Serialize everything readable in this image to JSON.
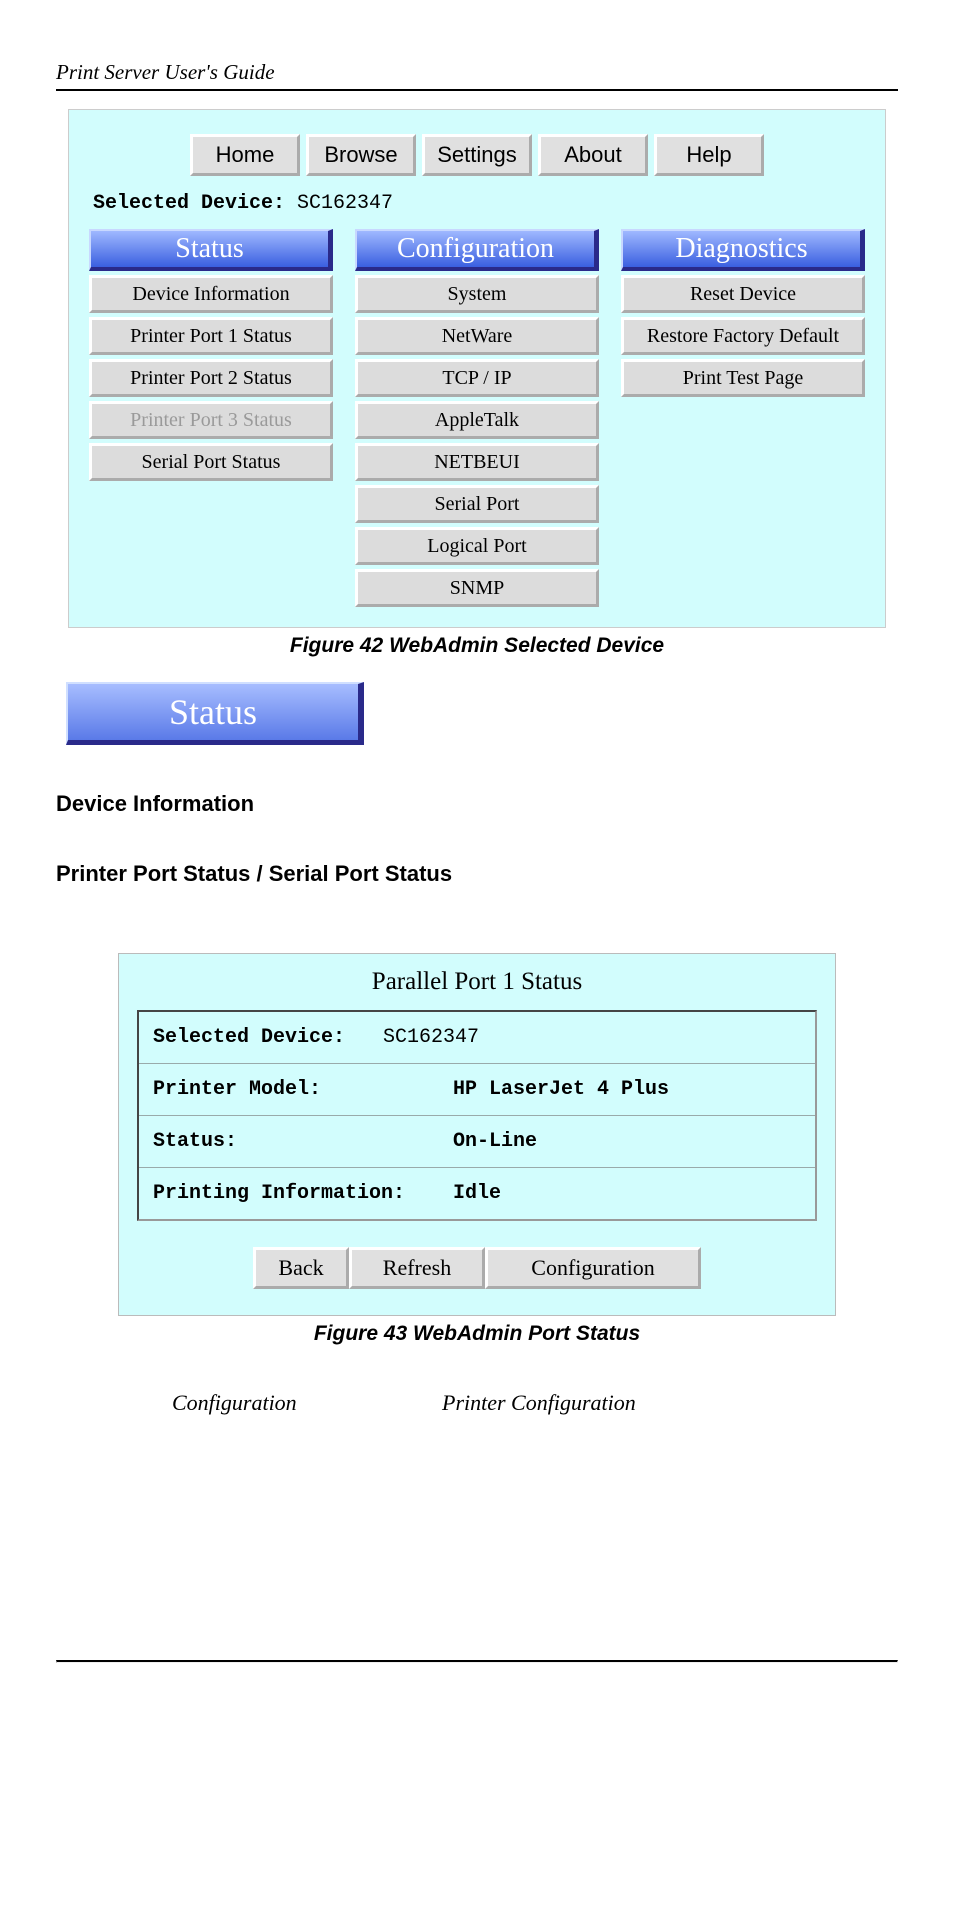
{
  "header": "Print Server User's Guide",
  "fig1": {
    "nav": [
      "Home",
      "Browse",
      "Settings",
      "About",
      "Help"
    ],
    "selected_label": "Selected Device:",
    "selected_value": "SC162347",
    "cols": [
      {
        "title": "Status",
        "items": [
          {
            "t": "Device Information",
            "d": false
          },
          {
            "t": "Printer Port 1 Status",
            "d": false
          },
          {
            "t": "Printer Port 2 Status",
            "d": false
          },
          {
            "t": "Printer Port 3 Status",
            "d": true
          },
          {
            "t": "Serial Port Status",
            "d": false
          }
        ]
      },
      {
        "title": "Configuration",
        "items": [
          {
            "t": "System",
            "d": false
          },
          {
            "t": "NetWare",
            "d": false
          },
          {
            "t": "TCP / IP",
            "d": false
          },
          {
            "t": "AppleTalk",
            "d": false
          },
          {
            "t": "NETBEUI",
            "d": false
          },
          {
            "t": "Serial Port",
            "d": false
          },
          {
            "t": "Logical Port",
            "d": false
          },
          {
            "t": "SNMP",
            "d": false
          }
        ]
      },
      {
        "title": "Diagnostics",
        "items": [
          {
            "t": "Reset Device",
            "d": false
          },
          {
            "t": "Restore Factory Default",
            "d": false
          },
          {
            "t": "Print Test Page",
            "d": false
          }
        ]
      }
    ],
    "caption": "Figure 42 WebAdmin Selected Device"
  },
  "status_badge": "Status",
  "sect1": "Device Information",
  "sect2": "Printer Port Status / Serial Port Status",
  "fig2": {
    "title": "Parallel Port 1 Status",
    "rows": [
      {
        "l": "Selected Device:",
        "v": "SC162347"
      },
      {
        "l": "Printer Model:",
        "v": "HP LaserJet 4 Plus"
      },
      {
        "l": "Status:",
        "v": "On-Line"
      },
      {
        "l": "Printing Information:",
        "v": "Idle"
      }
    ],
    "btns": [
      "Back",
      "Refresh",
      "Configuration"
    ],
    "caption": "Figure 43 WebAdmin Port Status"
  },
  "line": {
    "a": "Configuration",
    "b": "Printer Configuration"
  }
}
